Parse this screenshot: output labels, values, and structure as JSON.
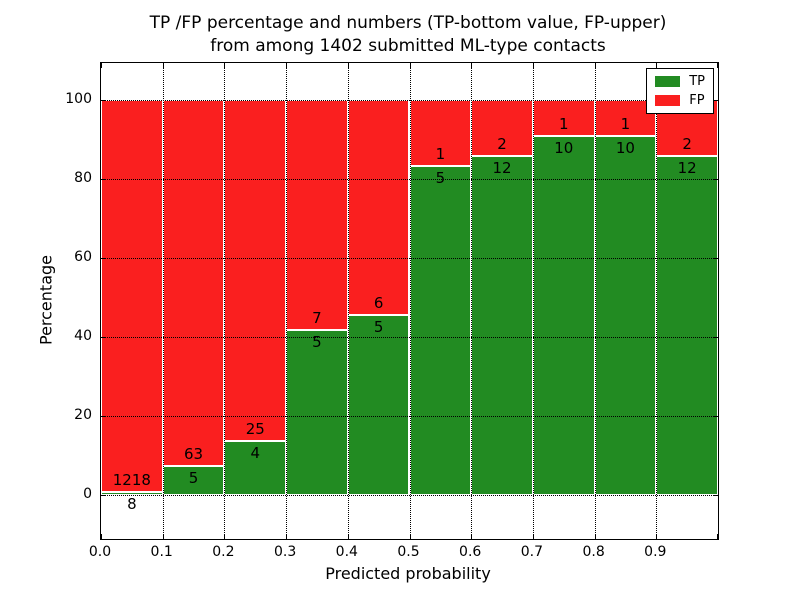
{
  "chart_data": {
    "type": "bar",
    "stacked": true,
    "orientation": "vertical",
    "title": "TP /FP percentage and numbers (TP-bottom value, FP-upper)\nfrom among 1402 submitted ML-type contacts",
    "title_line1": "TP /FP percentage and numbers (TP-bottom value, FP-upper)",
    "title_line2": "from among 1402 submitted ML-type contacts",
    "xlabel": "Predicted probability",
    "ylabel": "Percentage",
    "x_tick_labels": [
      "0.0",
      "0.1",
      "0.2",
      "0.3",
      "0.4",
      "0.5",
      "0.6",
      "0.7",
      "0.8",
      "0.9"
    ],
    "y_tick_values": [
      0,
      20,
      40,
      60,
      80,
      100
    ],
    "xlim": [
      0.0,
      1.0
    ],
    "ylim": [
      -11,
      110
    ],
    "bin_width": 0.1,
    "grid": {
      "visible": true,
      "style": "dotted",
      "color": "#000000",
      "above_bars": true
    },
    "categories": [
      "0.0-0.1",
      "0.1-0.2",
      "0.2-0.3",
      "0.3-0.4",
      "0.4-0.5",
      "0.5-0.6",
      "0.6-0.7",
      "0.7-0.8",
      "0.8-0.9",
      "0.9-1.0"
    ],
    "series": [
      {
        "name": "TP",
        "color": "#228b22",
        "values": [
          8,
          5,
          4,
          5,
          5,
          5,
          12,
          10,
          10,
          12
        ]
      },
      {
        "name": "FP",
        "color": "#fa1f1f",
        "values": [
          1218,
          63,
          25,
          7,
          6,
          1,
          2,
          1,
          1,
          2
        ]
      }
    ],
    "tp_pct": [
      0.65,
      7.35,
      13.79,
      41.67,
      45.45,
      83.33,
      85.71,
      90.91,
      90.91,
      85.71
    ],
    "bar_edge_color": "#ffffff",
    "legend": {
      "position": "upper right",
      "entries": [
        {
          "label": "TP",
          "color": "#228b22"
        },
        {
          "label": "FP",
          "color": "#fa1f1f"
        }
      ]
    }
  }
}
